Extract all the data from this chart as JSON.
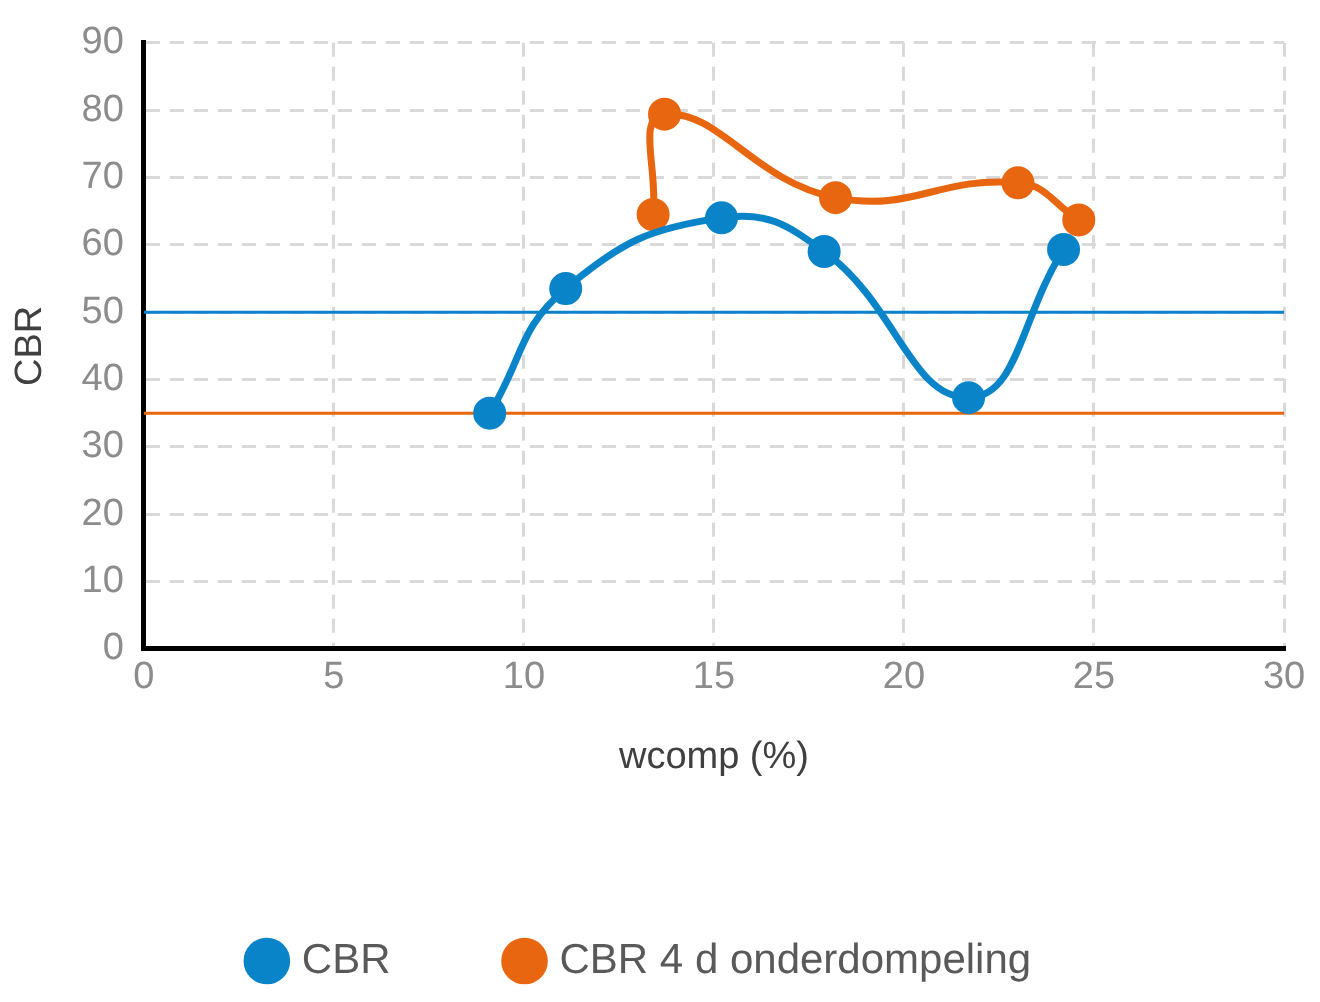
{
  "chart_data": {
    "type": "line",
    "xlabel": "wcomp (%)",
    "ylabel": "CBR",
    "xlim": [
      0,
      30
    ],
    "xticks": [
      0,
      5,
      10,
      15,
      20,
      25,
      30
    ],
    "ylim": [
      0,
      90
    ],
    "yticks": [
      0,
      10,
      20,
      30,
      40,
      50,
      60,
      70,
      80,
      90
    ],
    "grid": true,
    "legend": "bottom",
    "marker": "circle",
    "line_style": "solid",
    "series": [
      {
        "name": "CBR",
        "color": "#0a84c8",
        "x": [
          9.1,
          11.1,
          15.2,
          17.9,
          21.7,
          24.2
        ],
        "values": [
          35,
          53.5,
          64,
          59,
          37.3,
          59.3
        ]
      },
      {
        "name": "CBR 4 d onderdompeling",
        "color": "#e8660f",
        "x": [
          13.4,
          13.7,
          18.2,
          23.0,
          24.6
        ],
        "values": [
          64.5,
          79.4,
          67,
          69.2,
          63.7
        ]
      }
    ],
    "ref_lines": [
      {
        "axis": "y",
        "value": 50,
        "color": "#0a84c8"
      },
      {
        "axis": "y",
        "value": 35,
        "color": "#e8660f"
      }
    ]
  }
}
